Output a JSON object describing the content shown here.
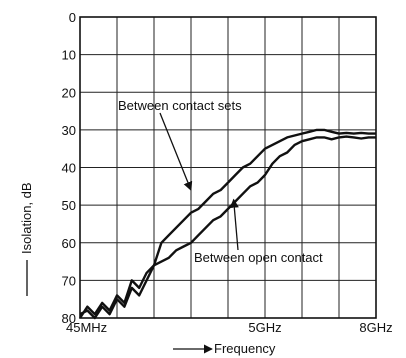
{
  "chart_data": {
    "type": "line",
    "title": "",
    "ylabel": "Isolation, dB",
    "xlabel": "Frequency",
    "y_inverted": true,
    "ylim": [
      0,
      80
    ],
    "xlim": [
      0,
      8
    ],
    "y_ticks": [
      "0",
      "10",
      "20",
      "30",
      "40",
      "50",
      "60",
      "70",
      "80"
    ],
    "x_ticks": [
      {
        "x": 0,
        "label": "45MHz"
      },
      {
        "x": 5,
        "label": "5GHz"
      },
      {
        "x": 8,
        "label": "8GHz"
      }
    ],
    "grid": true,
    "series": [
      {
        "x": [
          0.0,
          0.2,
          0.4,
          0.6,
          0.8,
          1.0,
          1.2,
          1.4,
          1.6,
          1.8,
          2.0,
          2.2,
          2.4,
          2.6,
          2.8,
          3.0,
          3.2,
          3.4,
          3.6,
          3.8,
          4.0,
          4.2,
          4.4,
          4.6,
          4.8,
          5.0,
          5.2,
          5.4,
          5.6,
          5.8,
          6.0,
          6.2,
          6.4,
          6.6,
          6.8,
          7.0,
          7.2,
          7.4,
          7.6,
          7.8,
          8.0
        ],
        "y": [
          79,
          78,
          80,
          77,
          79,
          75,
          77,
          72,
          74,
          70,
          66,
          60,
          58,
          56,
          54,
          52,
          51,
          49,
          47,
          46,
          44,
          42,
          40,
          39,
          37,
          35,
          34,
          33,
          32,
          31.5,
          31,
          30.5,
          30,
          30,
          30.5,
          31,
          30.8,
          31,
          30.8,
          31,
          31
        ]
      },
      {
        "x": [
          0.0,
          0.2,
          0.4,
          0.6,
          0.8,
          1.0,
          1.2,
          1.4,
          1.6,
          1.8,
          2.0,
          2.2,
          2.4,
          2.6,
          2.8,
          3.0,
          3.2,
          3.4,
          3.6,
          3.8,
          4.0,
          4.2,
          4.4,
          4.6,
          4.8,
          5.0,
          5.2,
          5.4,
          5.6,
          5.8,
          6.0,
          6.2,
          6.4,
          6.6,
          6.8,
          7.0,
          7.2,
          7.4,
          7.6,
          7.8,
          8.0
        ],
        "y": [
          80,
          77,
          79,
          76,
          78,
          74,
          76,
          70,
          72,
          68,
          66,
          65,
          64,
          62,
          61,
          60,
          58,
          56,
          54,
          53,
          51,
          49,
          47,
          45,
          44,
          42,
          39,
          37,
          36,
          34,
          33,
          32.5,
          32,
          32,
          32.5,
          32,
          31.8,
          32,
          32.3,
          32,
          32
        ]
      }
    ],
    "annotations": [
      {
        "text": "Between contact sets",
        "points_to": [
          3.0,
          46
        ]
      },
      {
        "text": "Between open contact",
        "points_to": [
          4.15,
          48.5
        ]
      }
    ]
  }
}
